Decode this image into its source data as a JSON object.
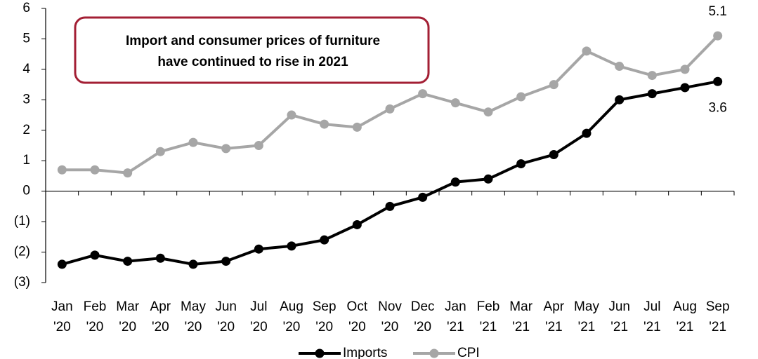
{
  "chart_data": {
    "type": "line",
    "annotation": [
      "Import and consumer prices of furniture",
      "have continued to rise in 2021"
    ],
    "categories": [
      [
        "Jan",
        "'20"
      ],
      [
        "Feb",
        "'20"
      ],
      [
        "Mar",
        "'20"
      ],
      [
        "Apr",
        "'20"
      ],
      [
        "May",
        "'20"
      ],
      [
        "Jun",
        "'20"
      ],
      [
        "Jul",
        "'20"
      ],
      [
        "Aug",
        "'20"
      ],
      [
        "Sep",
        "'20"
      ],
      [
        "Oct",
        "'20"
      ],
      [
        "Nov",
        "'20"
      ],
      [
        "Dec",
        "'20"
      ],
      [
        "Jan",
        "'21"
      ],
      [
        "Feb",
        "'21"
      ],
      [
        "Mar",
        "'21"
      ],
      [
        "Apr",
        "'21"
      ],
      [
        "May",
        "'21"
      ],
      [
        "Jun",
        "'21"
      ],
      [
        "Jul",
        "'21"
      ],
      [
        "Aug",
        "'21"
      ],
      [
        "Sep",
        "'21"
      ]
    ],
    "series": [
      {
        "name": "Imports",
        "color": "#000000",
        "values": [
          -2.4,
          -2.1,
          -2.3,
          -2.2,
          -2.4,
          -2.3,
          -1.9,
          -1.8,
          -1.6,
          -1.1,
          -0.5,
          -0.2,
          0.3,
          0.4,
          0.9,
          1.2,
          1.9,
          3.0,
          3.2,
          3.4,
          3.6
        ]
      },
      {
        "name": "CPI",
        "color": "#a6a6a6",
        "values": [
          0.7,
          0.7,
          0.6,
          1.3,
          1.6,
          1.4,
          1.5,
          2.5,
          2.2,
          2.1,
          2.7,
          3.2,
          2.9,
          2.6,
          3.1,
          3.5,
          4.6,
          4.1,
          3.8,
          4.0,
          5.1
        ]
      }
    ],
    "ylim": [
      -3,
      6
    ],
    "yticks": [
      6,
      5,
      4,
      3,
      2,
      1,
      0,
      {
        "value": -1,
        "label": "(1)"
      },
      {
        "value": -2,
        "label": "(2)"
      },
      {
        "value": -3,
        "label": "(3)"
      }
    ],
    "legend": "bottom"
  }
}
